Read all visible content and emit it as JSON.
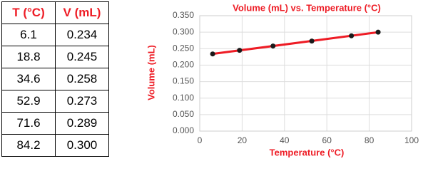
{
  "table": {
    "header": [
      "T (°C)",
      "V (mL)"
    ],
    "rows": [
      [
        "6.1",
        "0.234"
      ],
      [
        "18.8",
        "0.245"
      ],
      [
        "34.6",
        "0.258"
      ],
      [
        "52.9",
        "0.273"
      ],
      [
        "71.6",
        "0.289"
      ],
      [
        "84.2",
        "0.300"
      ]
    ]
  },
  "chart_data": {
    "type": "scatter",
    "title": "Volume (mL) vs. Temperature (°C)",
    "x_label": "Temperature (°C)",
    "y_label": "Volume (mL)",
    "x": [
      6.1,
      18.8,
      34.6,
      52.9,
      71.6,
      84.2
    ],
    "values": [
      0.234,
      0.245,
      0.258,
      0.273,
      0.289,
      0.3
    ],
    "color": "#1a1a1a",
    "trendline": "linear",
    "trendline_color": "#ee1c25",
    "xlim": [
      0,
      100
    ],
    "xticks": [
      0,
      20,
      40,
      60,
      80,
      100
    ],
    "ylim": [
      0,
      0.35
    ],
    "yticks": [
      {
        "value": 0,
        "label": "0.000"
      },
      {
        "value": 0.05,
        "label": "0.050"
      },
      {
        "value": 0.1,
        "label": "0.100"
      },
      {
        "value": 0.15,
        "label": "0.150"
      },
      {
        "value": 0.2,
        "label": "0.200"
      },
      {
        "value": 0.25,
        "label": "0.250"
      },
      {
        "value": 0.3,
        "label": "0.300"
      },
      {
        "value": 0.35,
        "label": "0.350"
      }
    ],
    "grid": true
  }
}
